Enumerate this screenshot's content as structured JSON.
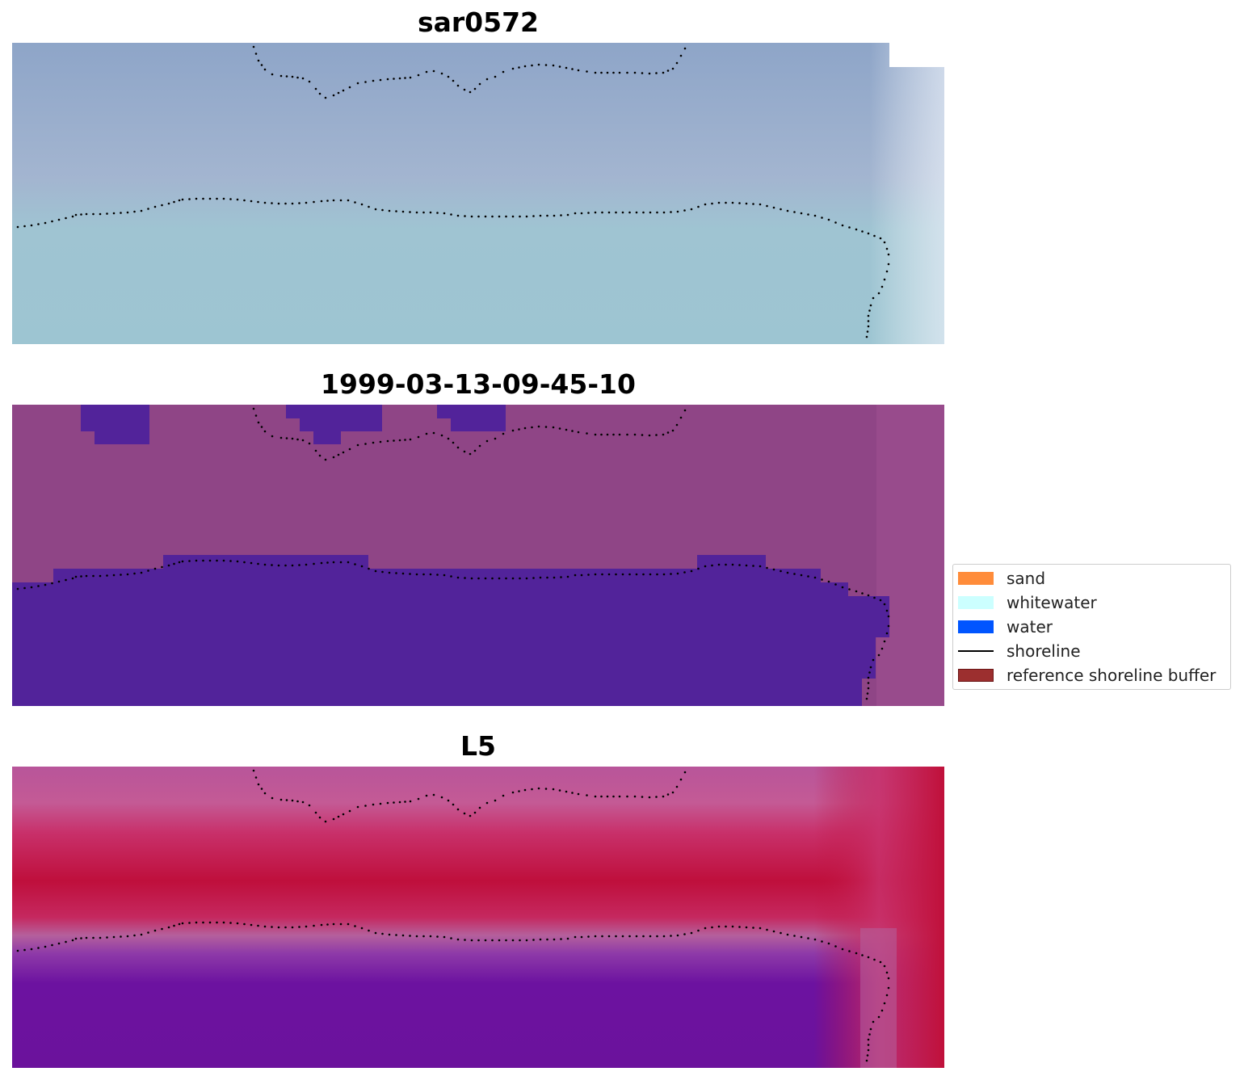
{
  "panels": [
    {
      "id": "sar",
      "title": "sar0572"
    },
    {
      "id": "classified",
      "title": "1999-03-13-09-45-10"
    },
    {
      "id": "ndwi",
      "title": "L5"
    }
  ],
  "legend": {
    "items": [
      {
        "label": "sand",
        "color": "#ff8c3a",
        "kind": "patch"
      },
      {
        "label": "whitewater",
        "color": "#ccffff",
        "kind": "patch"
      },
      {
        "label": "water",
        "color": "#0055ff",
        "kind": "patch"
      },
      {
        "label": "shoreline",
        "color": "#000000",
        "kind": "line"
      },
      {
        "label": "reference shoreline buffer",
        "color": "#9c2f2f",
        "kind": "patch"
      }
    ]
  },
  "colors": {
    "sar_sea": "#9cc2cf",
    "sar_land": "#93a9cc",
    "land_pink": "#8f4586",
    "water_class": "#52239a",
    "ndwi_red": "#c0103a",
    "ndwi_pink": "#c55a95",
    "ndwi_purple": "#6b0f9e",
    "shoreline_dots": "#000000"
  }
}
